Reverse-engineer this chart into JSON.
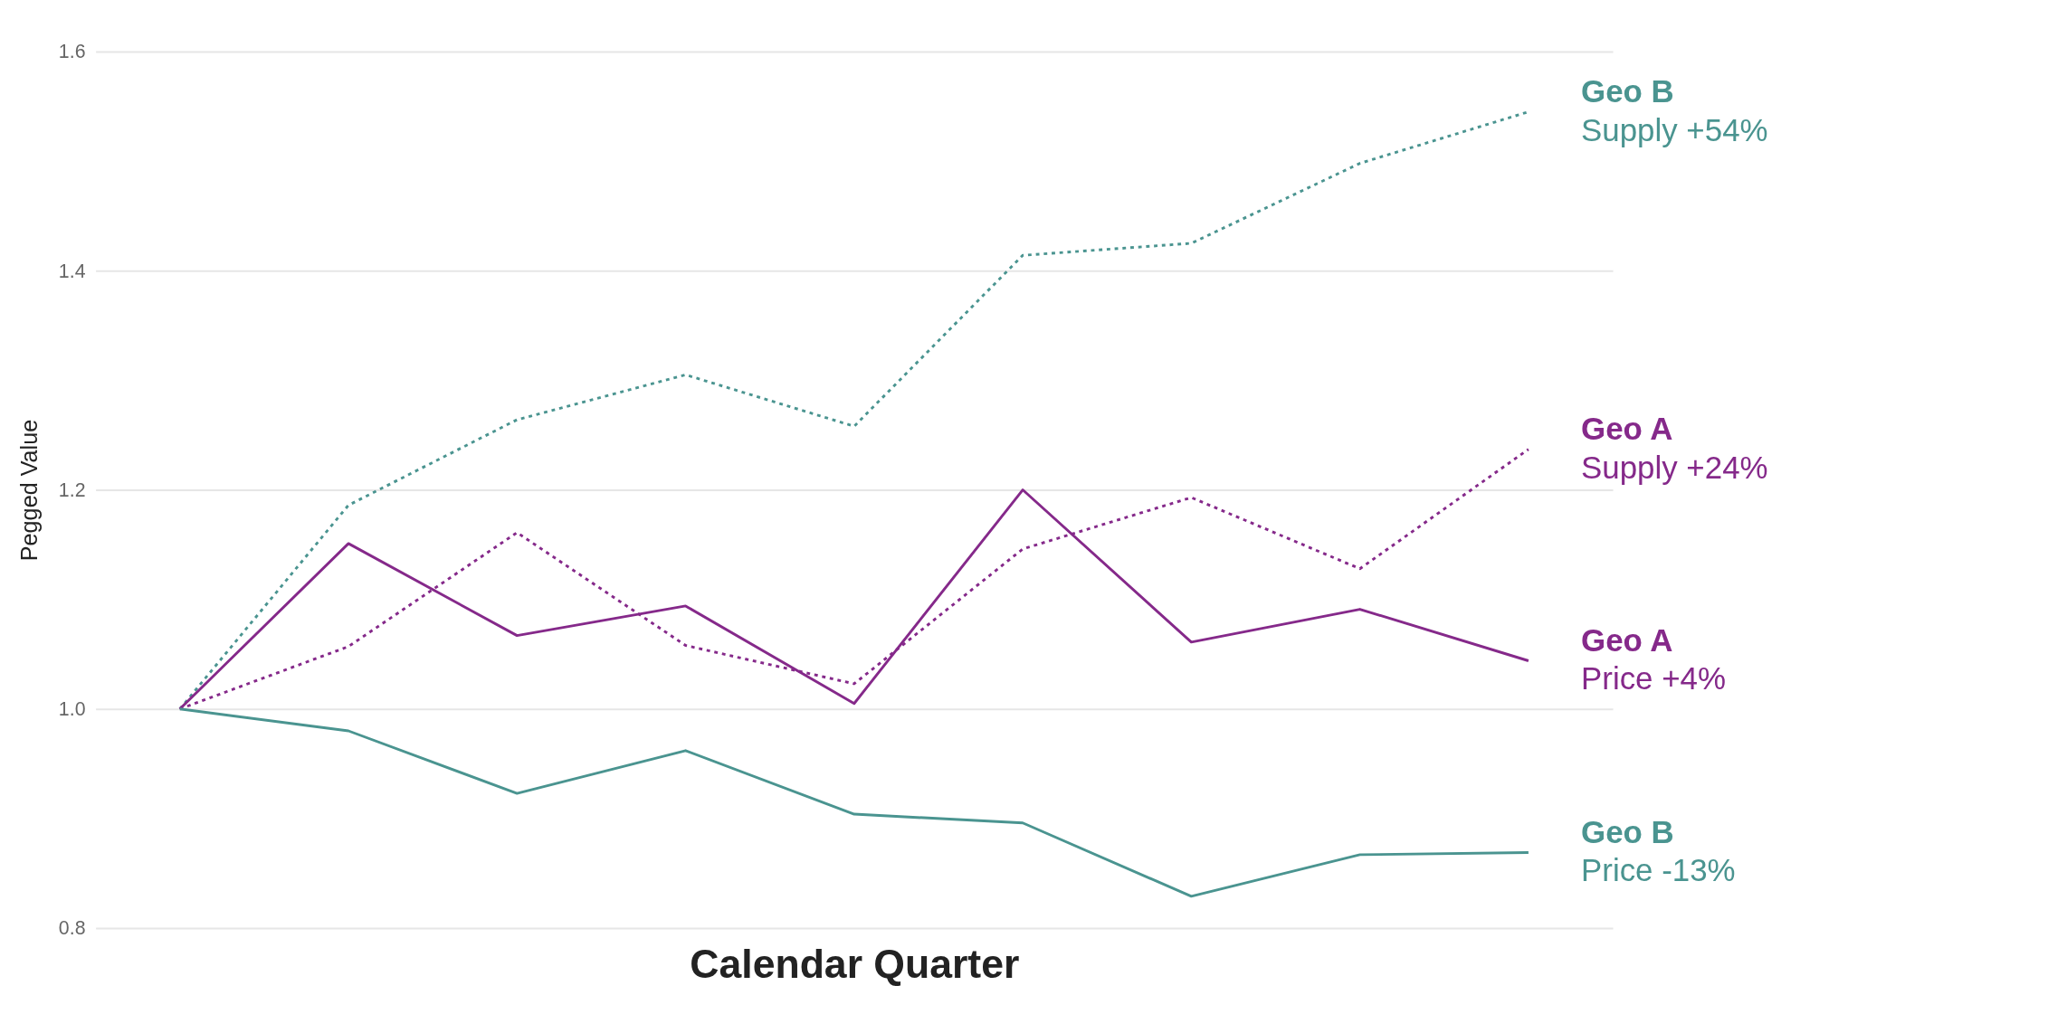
{
  "chart_data": {
    "type": "line",
    "xlabel": "Calendar Quarter",
    "ylabel": "Pegged Value",
    "categories": [
      null,
      null,
      null,
      null,
      null,
      null,
      null,
      null,
      null
    ],
    "ylim": [
      0.8,
      1.6
    ],
    "yticks": [
      0.8,
      {
        "value": 1.0,
        "label": "1.0"
      },
      1.2,
      1.4,
      1.6
    ],
    "grid": "y",
    "legend": false,
    "marker": "none",
    "tick_labels": "y",
    "series": [
      {
        "name": "Geo B\nSupply +54%",
        "color": "#4a9490",
        "line_style": "dotted",
        "values": [
          1.0,
          1.186,
          1.264,
          1.305,
          1.258,
          1.414,
          1.425,
          1.498,
          1.545
        ]
      },
      {
        "name": "Geo A\nSupply +24%",
        "color": "#85298a",
        "line_style": "dotted",
        "values": [
          1.0,
          1.057,
          1.161,
          1.058,
          1.023,
          1.146,
          1.193,
          1.128,
          1.237
        ]
      },
      {
        "name": "Geo A\nPrice +4%",
        "color": "#85298a",
        "line_style": "solid",
        "values": [
          1.0,
          1.151,
          1.067,
          1.094,
          1.005,
          1.2,
          1.061,
          1.091,
          1.044
        ]
      },
      {
        "name": "Geo B\nPrice -13%",
        "color": "#4a9490",
        "line_style": "solid",
        "values": [
          1.0,
          0.98,
          0.923,
          0.962,
          0.904,
          0.896,
          0.829,
          0.867,
          0.869
        ]
      }
    ]
  }
}
